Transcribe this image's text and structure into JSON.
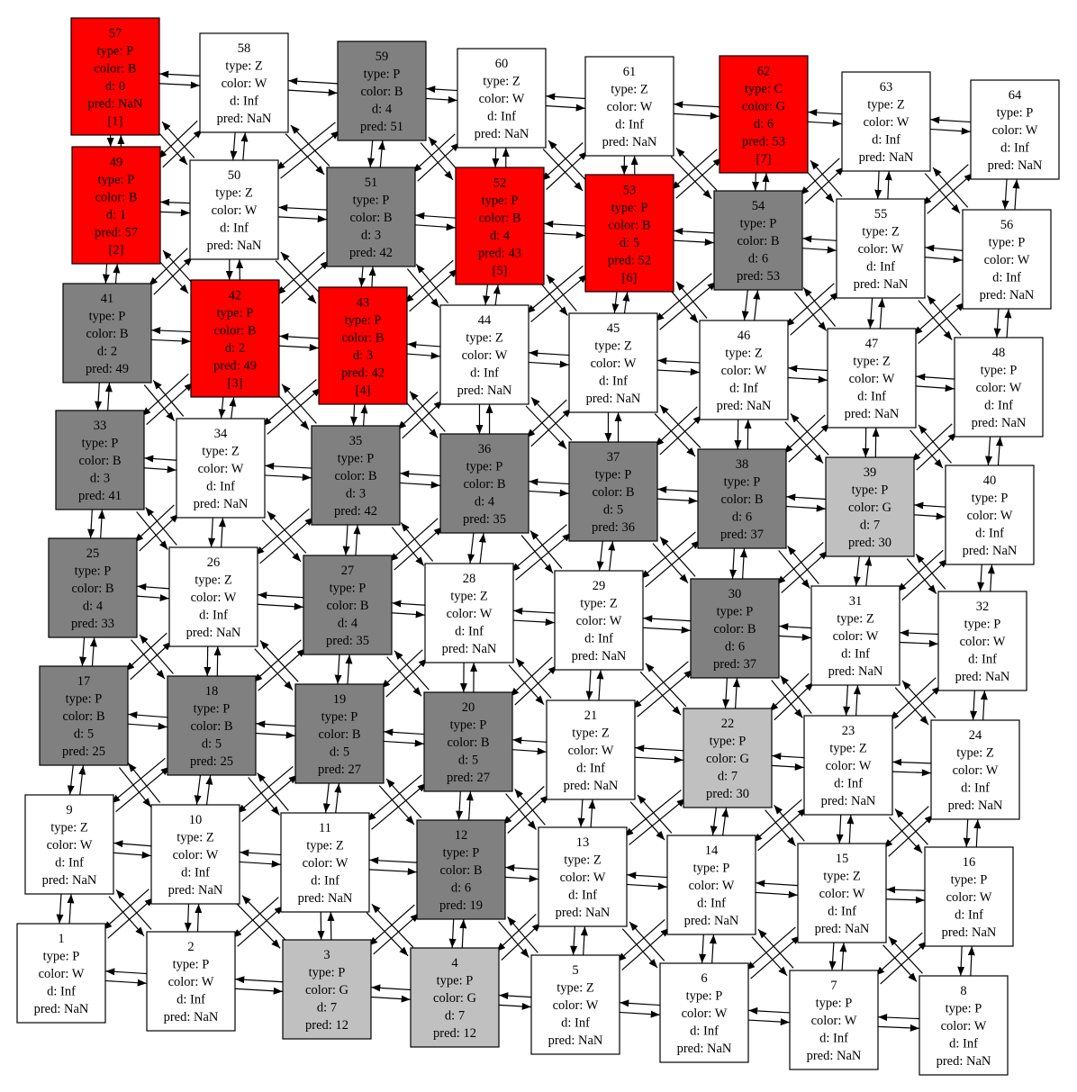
{
  "legend": {
    "colors": {
      "B": "#808080",
      "G": "#c0c0c0",
      "W": "#ffffff",
      "path": "#ff0000"
    }
  },
  "nodes": [
    {
      "id": "1",
      "lines": [
        "1",
        "type: P",
        "color: W",
        "d: Inf",
        "pred: NaN"
      ],
      "fill": "W"
    },
    {
      "id": "2",
      "lines": [
        "2",
        "type: P",
        "color: W",
        "d: Inf",
        "pred: NaN"
      ],
      "fill": "W"
    },
    {
      "id": "3",
      "lines": [
        "3",
        "type: P",
        "color: G",
        "d: 7",
        "pred: 12"
      ],
      "fill": "G"
    },
    {
      "id": "4",
      "lines": [
        "4",
        "type: P",
        "color: G",
        "d: 7",
        "pred: 12"
      ],
      "fill": "G"
    },
    {
      "id": "5",
      "lines": [
        "5",
        "type: Z",
        "color: W",
        "d: Inf",
        "pred: NaN"
      ],
      "fill": "W"
    },
    {
      "id": "6",
      "lines": [
        "6",
        "type: P",
        "color: W",
        "d: Inf",
        "pred: NaN"
      ],
      "fill": "W"
    },
    {
      "id": "7",
      "lines": [
        "7",
        "type: P",
        "color: W",
        "d: Inf",
        "pred: NaN"
      ],
      "fill": "W"
    },
    {
      "id": "8",
      "lines": [
        "8",
        "type: P",
        "color: W",
        "d: Inf",
        "pred: NaN"
      ],
      "fill": "W"
    },
    {
      "id": "9",
      "lines": [
        "9",
        "type: Z",
        "color: W",
        "d: Inf",
        "pred: NaN"
      ],
      "fill": "W"
    },
    {
      "id": "10",
      "lines": [
        "10",
        "type: Z",
        "color: W",
        "d: Inf",
        "pred: NaN"
      ],
      "fill": "W"
    },
    {
      "id": "11",
      "lines": [
        "11",
        "type: Z",
        "color: W",
        "d: Inf",
        "pred: NaN"
      ],
      "fill": "W"
    },
    {
      "id": "12",
      "lines": [
        "12",
        "type: P",
        "color: B",
        "d: 6",
        "pred: 19"
      ],
      "fill": "B"
    },
    {
      "id": "13",
      "lines": [
        "13",
        "type: Z",
        "color: W",
        "d: Inf",
        "pred: NaN"
      ],
      "fill": "W"
    },
    {
      "id": "14",
      "lines": [
        "14",
        "type: P",
        "color: W",
        "d: Inf",
        "pred: NaN"
      ],
      "fill": "W"
    },
    {
      "id": "15",
      "lines": [
        "15",
        "type: Z",
        "color: W",
        "d: Inf",
        "pred: NaN"
      ],
      "fill": "W"
    },
    {
      "id": "16",
      "lines": [
        "16",
        "type: P",
        "color: W",
        "d: Inf",
        "pred: NaN"
      ],
      "fill": "W"
    },
    {
      "id": "17",
      "lines": [
        "17",
        "type: P",
        "color: B",
        "d: 5",
        "pred: 25"
      ],
      "fill": "B"
    },
    {
      "id": "18",
      "lines": [
        "18",
        "type: P",
        "color: B",
        "d: 5",
        "pred: 25"
      ],
      "fill": "B"
    },
    {
      "id": "19",
      "lines": [
        "19",
        "type: P",
        "color: B",
        "d: 5",
        "pred: 27"
      ],
      "fill": "B"
    },
    {
      "id": "20",
      "lines": [
        "20",
        "type: P",
        "color: B",
        "d: 5",
        "pred: 27"
      ],
      "fill": "B"
    },
    {
      "id": "21",
      "lines": [
        "21",
        "type: Z",
        "color: W",
        "d: Inf",
        "pred: NaN"
      ],
      "fill": "W"
    },
    {
      "id": "22",
      "lines": [
        "22",
        "type: P",
        "color: G",
        "d: 7",
        "pred: 30"
      ],
      "fill": "G"
    },
    {
      "id": "23",
      "lines": [
        "23",
        "type: Z",
        "color: W",
        "d: Inf",
        "pred: NaN"
      ],
      "fill": "W"
    },
    {
      "id": "24",
      "lines": [
        "24",
        "type: Z",
        "color: W",
        "d: Inf",
        "pred: NaN"
      ],
      "fill": "W"
    },
    {
      "id": "25",
      "lines": [
        "25",
        "type: P",
        "color: B",
        "d: 4",
        "pred: 33"
      ],
      "fill": "B"
    },
    {
      "id": "26",
      "lines": [
        "26",
        "type: Z",
        "color: W",
        "d: Inf",
        "pred: NaN"
      ],
      "fill": "W"
    },
    {
      "id": "27",
      "lines": [
        "27",
        "type: P",
        "color: B",
        "d: 4",
        "pred: 35"
      ],
      "fill": "B"
    },
    {
      "id": "28",
      "lines": [
        "28",
        "type: Z",
        "color: W",
        "d: Inf",
        "pred: NaN"
      ],
      "fill": "W"
    },
    {
      "id": "29",
      "lines": [
        "29",
        "type: Z",
        "color: W",
        "d: Inf",
        "pred: NaN"
      ],
      "fill": "W"
    },
    {
      "id": "30",
      "lines": [
        "30",
        "type: P",
        "color: B",
        "d: 6",
        "pred: 37"
      ],
      "fill": "B"
    },
    {
      "id": "31",
      "lines": [
        "31",
        "type: Z",
        "color: W",
        "d: Inf",
        "pred: NaN"
      ],
      "fill": "W"
    },
    {
      "id": "32",
      "lines": [
        "32",
        "type: P",
        "color: W",
        "d: Inf",
        "pred: NaN"
      ],
      "fill": "W"
    },
    {
      "id": "33",
      "lines": [
        "33",
        "type: P",
        "color: B",
        "d: 3",
        "pred: 41"
      ],
      "fill": "B"
    },
    {
      "id": "34",
      "lines": [
        "34",
        "type: Z",
        "color: W",
        "d: Inf",
        "pred: NaN"
      ],
      "fill": "W"
    },
    {
      "id": "35",
      "lines": [
        "35",
        "type: P",
        "color: B",
        "d: 3",
        "pred: 42"
      ],
      "fill": "B"
    },
    {
      "id": "36",
      "lines": [
        "36",
        "type: P",
        "color: B",
        "d: 4",
        "pred: 35"
      ],
      "fill": "B"
    },
    {
      "id": "37",
      "lines": [
        "37",
        "type: P",
        "color: B",
        "d: 5",
        "pred: 36"
      ],
      "fill": "B"
    },
    {
      "id": "38",
      "lines": [
        "38",
        "type: P",
        "color: B",
        "d: 6",
        "pred: 37"
      ],
      "fill": "B"
    },
    {
      "id": "39",
      "lines": [
        "39",
        "type: P",
        "color: G",
        "d: 7",
        "pred: 30"
      ],
      "fill": "G"
    },
    {
      "id": "40",
      "lines": [
        "40",
        "type: P",
        "color: W",
        "d: Inf",
        "pred: NaN"
      ],
      "fill": "W"
    },
    {
      "id": "41",
      "lines": [
        "41",
        "type: P",
        "color: B",
        "d: 2",
        "pred: 49"
      ],
      "fill": "B"
    },
    {
      "id": "42",
      "lines": [
        "42",
        "type: P",
        "color: B",
        "d: 2",
        "pred: 49",
        "[3]"
      ],
      "fill": "path"
    },
    {
      "id": "43",
      "lines": [
        "43",
        "type: P",
        "color: B",
        "d: 3",
        "pred: 42",
        "[4]"
      ],
      "fill": "path"
    },
    {
      "id": "44",
      "lines": [
        "44",
        "type: Z",
        "color: W",
        "d: Inf",
        "pred: NaN"
      ],
      "fill": "W"
    },
    {
      "id": "45",
      "lines": [
        "45",
        "type: Z",
        "color: W",
        "d: Inf",
        "pred: NaN"
      ],
      "fill": "W"
    },
    {
      "id": "46",
      "lines": [
        "46",
        "type: Z",
        "color: W",
        "d: Inf",
        "pred: NaN"
      ],
      "fill": "W"
    },
    {
      "id": "47",
      "lines": [
        "47",
        "type: Z",
        "color: W",
        "d: Inf",
        "pred: NaN"
      ],
      "fill": "W"
    },
    {
      "id": "48",
      "lines": [
        "48",
        "type: P",
        "color: W",
        "d: Inf",
        "pred: NaN"
      ],
      "fill": "W"
    },
    {
      "id": "49",
      "lines": [
        "49",
        "type: P",
        "color: B",
        "d: 1",
        "pred: 57",
        "[2]"
      ],
      "fill": "path"
    },
    {
      "id": "50",
      "lines": [
        "50",
        "type: Z",
        "color: W",
        "d: Inf",
        "pred: NaN"
      ],
      "fill": "W"
    },
    {
      "id": "51",
      "lines": [
        "51",
        "type: P",
        "color: B",
        "d: 3",
        "pred: 42"
      ],
      "fill": "B"
    },
    {
      "id": "52",
      "lines": [
        "52",
        "type: P",
        "color: B",
        "d: 4",
        "pred: 43",
        "[5]"
      ],
      "fill": "path"
    },
    {
      "id": "53",
      "lines": [
        "53",
        "type: P",
        "color: B",
        "d: 5",
        "pred: 52",
        "[6]"
      ],
      "fill": "path"
    },
    {
      "id": "54",
      "lines": [
        "54",
        "type: P",
        "color: B",
        "d: 6",
        "pred: 53"
      ],
      "fill": "B"
    },
    {
      "id": "55",
      "lines": [
        "55",
        "type: Z",
        "color: W",
        "d: Inf",
        "pred: NaN"
      ],
      "fill": "W"
    },
    {
      "id": "56",
      "lines": [
        "56",
        "type: P",
        "color: W",
        "d: Inf",
        "pred: NaN"
      ],
      "fill": "W"
    },
    {
      "id": "57",
      "lines": [
        "57",
        "type: P",
        "color: B",
        "d: 0",
        "pred: NaN",
        "[1]"
      ],
      "fill": "path"
    },
    {
      "id": "58",
      "lines": [
        "58",
        "type: Z",
        "color: W",
        "d: Inf",
        "pred: NaN"
      ],
      "fill": "W"
    },
    {
      "id": "59",
      "lines": [
        "59",
        "type: P",
        "color: B",
        "d: 4",
        "pred: 51"
      ],
      "fill": "B"
    },
    {
      "id": "60",
      "lines": [
        "60",
        "type: Z",
        "color: W",
        "d: Inf",
        "pred: NaN"
      ],
      "fill": "W"
    },
    {
      "id": "61",
      "lines": [
        "61",
        "type: Z",
        "color: W",
        "d: Inf",
        "pred: NaN"
      ],
      "fill": "W"
    },
    {
      "id": "62",
      "lines": [
        "62",
        "type: C",
        "color: G",
        "d: 6",
        "pred: 53",
        "[7]"
      ],
      "fill": "path"
    },
    {
      "id": "63",
      "lines": [
        "63",
        "type: Z",
        "color: W",
        "d: Inf",
        "pred: NaN"
      ],
      "fill": "W"
    },
    {
      "id": "64",
      "lines": [
        "64",
        "type: P",
        "color: W",
        "d: Inf",
        "pred: NaN"
      ],
      "fill": "W"
    }
  ]
}
